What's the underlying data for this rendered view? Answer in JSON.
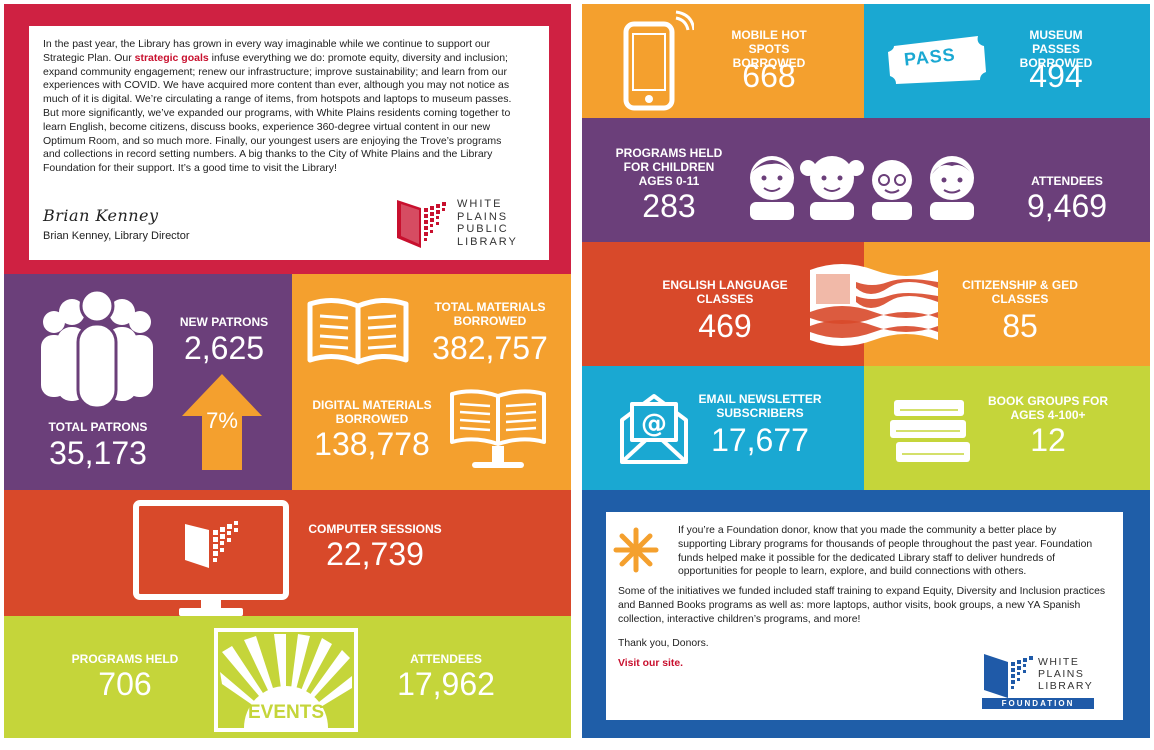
{
  "colors": {
    "red": "#cf2142",
    "purple": "#6b3f7a",
    "orange": "#f4a02e",
    "rust": "#d8492a",
    "lime": "#c5d53a",
    "cyan": "#1aa8d2",
    "blue": "#1f5ea8",
    "lib_red": "#c8102e",
    "lib_blue": "#1f5aa8"
  },
  "letter": {
    "text_pre": "In the past year, the Library has grown in every way imaginable while we continue to support our Strategic Plan. Our ",
    "link": "strategic goals",
    "text_post": " infuse everything we do: promote equity, diversity and inclusion; expand community engagement; renew our infrastructure; improve sustainability; and learn from our experiences with COVID. We have acquired more content than ever, although you may not notice as much of it is digital. We’re circulating a range of items, from hotspots and laptops to museum passes. But more significantly, we’ve expanded our programs, with White Plains residents coming together to learn English, become citizens, discuss books, experience 360-degree virtual content in our new Optimum Room, and so much more. Finally, our youngest users are enjoying the Trove’s programs and collections in record setting numbers. A big thanks to the City of White Plains and the Library Foundation for their support. It’s a good time to visit the Library!",
    "signature": "Brian Kenney",
    "signer": "Brian Kenney, Library Director",
    "logo_lines": [
      "WHITE",
      "PLAINS",
      "PUBLIC",
      "LIBRARY"
    ]
  },
  "stats": {
    "new_patrons": {
      "label": "NEW PATRONS",
      "value": "2,625"
    },
    "total_patrons": {
      "label": "TOTAL PATRONS",
      "value": "35,173"
    },
    "growth": "7%",
    "total_materials": {
      "label": "TOTAL MATERIALS BORROWED",
      "value": "382,757"
    },
    "digital_materials": {
      "label": "DIGITAL MATERIALS BORROWED",
      "value": "138,778"
    },
    "computer_sessions": {
      "label": "COMPUTER SESSIONS",
      "value": "22,739"
    },
    "programs_held": {
      "label": "PROGRAMS HELD",
      "value": "706"
    },
    "events_label": "EVENTS",
    "attendees": {
      "label": "ATTENDEES",
      "value": "17,962"
    },
    "hot_spots": {
      "label": "MOBILE HOT SPOTS BORROWED",
      "value": "668"
    },
    "museum_passes": {
      "label": "MUSEUM PASSES BORROWED",
      "value": "494",
      "ticket": "PASS"
    },
    "children_programs": {
      "label": "PROGRAMS HELD FOR CHILDREN AGES 0-11",
      "value": "283"
    },
    "children_attendees": {
      "label": "ATTENDEES",
      "value": "9,469"
    },
    "english_classes": {
      "label": "ENGLISH LANGUAGE CLASSES",
      "value": "469"
    },
    "citizenship": {
      "label": "CITIZENSHIP & GED CLASSES",
      "value": "85"
    },
    "newsletter": {
      "label": "EMAIL NEWSLETTER SUBSCRIBERS",
      "value": "17,677"
    },
    "book_groups": {
      "label": "BOOK GROUPS FOR AGES 4-100+",
      "value": "12"
    }
  },
  "foundation": {
    "p1": "If you’re a Foundation donor, know that you made the community a better place by supporting Library programs for thousands of people throughout the past year. Foundation funds helped make it possible for the dedicated Library staff to deliver hundreds of opportunities for people to learn, explore, and build connections with others.",
    "p2": "Some of the initiatives we funded included staff training to expand Equity, Diversity and Inclusion practices and Banned Books programs as well as: more laptops, author visits, book groups, a new YA Spanish collection, interactive children’s programs, and more!",
    "thanks": "Thank you, Donors.",
    "link": "Visit our site.",
    "logo_lines": [
      "WHITE",
      "PLAINS",
      "LIBRARY"
    ],
    "logo_banner": "FOUNDATION"
  }
}
